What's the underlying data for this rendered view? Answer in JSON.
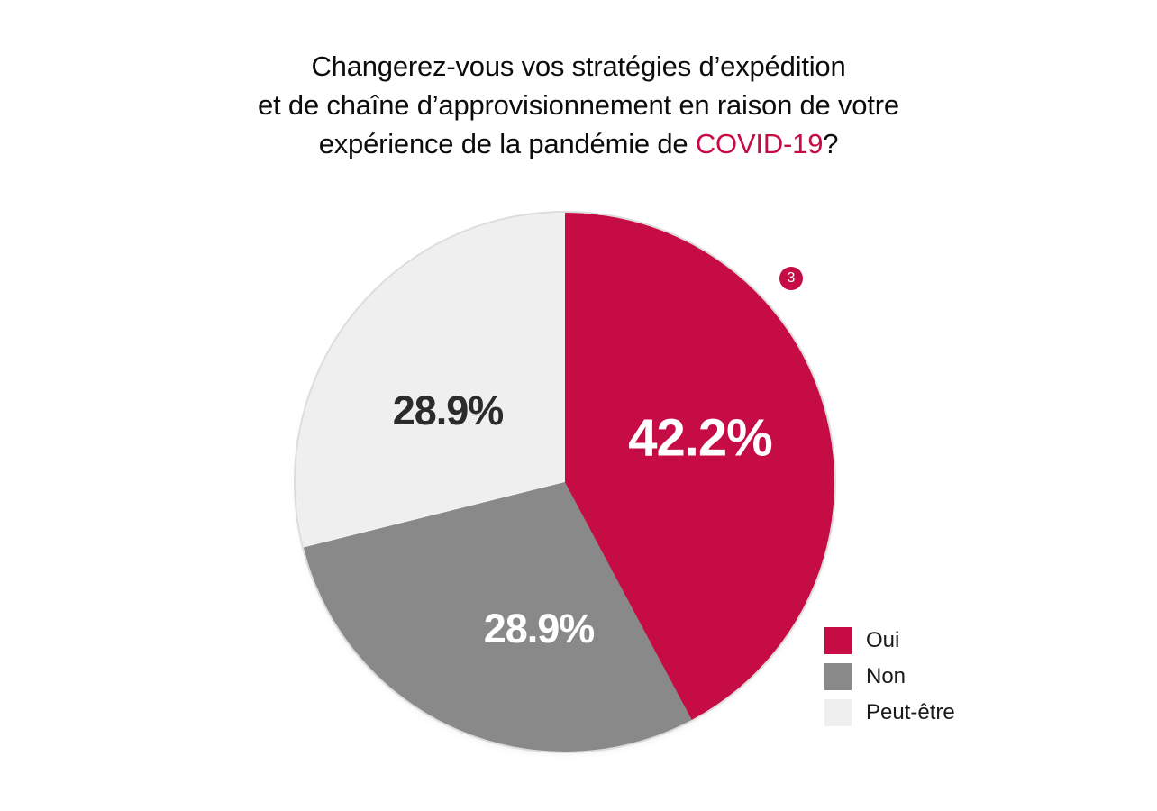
{
  "title": {
    "line1": "Changerez-vous vos stratégies d’expédition",
    "line2": "et de chaîne d’approvisionnement en raison de votre",
    "line3_before": "expérience de la pandémie de ",
    "line3_highlight": "COVID-19",
    "line3_after": "?",
    "text_color": "#0c0c0c",
    "highlight_color": "#C60C44"
  },
  "badge": {
    "label": "3",
    "color": "#C60C44",
    "text_color": "#ffffff"
  },
  "chart_data": {
    "type": "pie",
    "title": "Changerez-vous vos stratégies d’expédition et de chaîne d’approvisionnement en raison de votre expérience de la pandémie de COVID-19?",
    "start_angle_deg": 0,
    "direction": "clockwise",
    "slices": [
      {
        "label": "Oui",
        "value": 42.2,
        "display": "42.2%",
        "color": "#C60C44",
        "label_color": "#ffffff"
      },
      {
        "label": "Non",
        "value": 28.9,
        "display": "28.9%",
        "color": "#898989",
        "label_color": "#ffffff"
      },
      {
        "label": "Peut-être",
        "value": 28.9,
        "display": "28.9%",
        "color": "#EFEFEF",
        "label_color": "#2b2b2b"
      }
    ],
    "legend_position": "bottom-right",
    "ring_color": "#dcdcdc",
    "annotation_badge": "3"
  }
}
